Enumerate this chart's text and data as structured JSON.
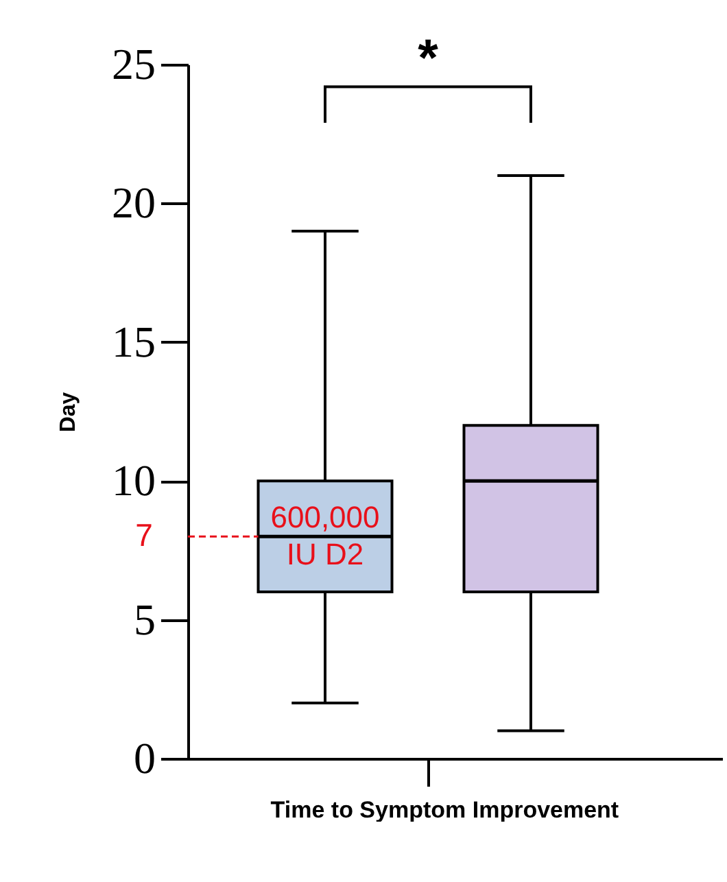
{
  "chart_data": {
    "type": "box",
    "xlabel": "Time to Symptom Improvement",
    "ylabel": "Day",
    "categories": [
      null
    ],
    "ylim": [
      0,
      25
    ],
    "yticks": [
      0,
      5,
      10,
      15,
      20,
      25
    ],
    "series": [
      {
        "name": "600,000 IU D2",
        "color": "#bccfe6",
        "boxes": [
          {
            "low": 2,
            "q1": 6,
            "median": 8,
            "q3": 10,
            "high": 19
          }
        ]
      },
      {
        "color": "#d1c3e5",
        "boxes": [
          {
            "low": 1,
            "q1": 6,
            "median": 10,
            "q3": 12,
            "high": 21
          }
        ]
      }
    ],
    "ref_lines": [
      {
        "axis": "y",
        "value": 8,
        "color": "#e8101a",
        "line_style": "dashed"
      }
    ],
    "annotations": [
      "*",
      "7"
    ],
    "grid": false,
    "legend": false
  }
}
